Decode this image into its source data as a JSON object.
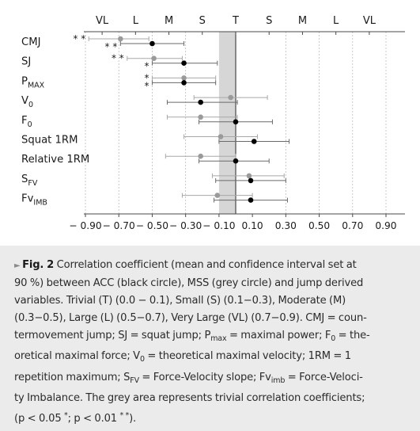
{
  "chart_data": {
    "type": "forest",
    "top_axis_labels": [
      "VL",
      "L",
      "M",
      "S",
      "T",
      "S",
      "M",
      "L",
      "VL"
    ],
    "x_ticks": [
      -0.9,
      -0.7,
      -0.5,
      -0.3,
      -0.1,
      0.1,
      0.3,
      0.5,
      0.7,
      0.9
    ],
    "x_tick_labels": [
      "− 0.90",
      "− 0.70",
      "− 0.50",
      "− 0.30",
      "− 0.10",
      "0.10",
      "0.30",
      "0.50",
      "0.70",
      "0.90"
    ],
    "xlim": [
      -1.0,
      1.0
    ],
    "trivial_band": [
      -0.1,
      0.0
    ],
    "grid": "dashed vertical",
    "colors": {
      "ACC": "#000000",
      "MSS": "#9a9a9a",
      "band": "#d6d6d6",
      "axis": "#4a4a4a"
    },
    "rows": [
      {
        "label": "CMJ",
        "sub": "",
        "sig": "* *",
        "sig2": "* *",
        "grey": {
          "mean": -0.69,
          "lo": -0.88,
          "hi": -0.52
        },
        "black": {
          "mean": -0.5,
          "lo": -0.69,
          "hi": -0.31
        }
      },
      {
        "label": "SJ",
        "sub": "",
        "sig": "* *",
        "sig2": "*",
        "grey": {
          "mean": -0.49,
          "lo": -0.65,
          "hi": -0.32
        },
        "black": {
          "mean": -0.31,
          "lo": -0.5,
          "hi": -0.11
        }
      },
      {
        "label": "P",
        "sub": "MAX",
        "sig": "*",
        "sig2": "*",
        "grey": {
          "mean": -0.31,
          "lo": -0.5,
          "hi": -0.12
        },
        "black": {
          "mean": -0.31,
          "lo": -0.5,
          "hi": -0.12
        }
      },
      {
        "label": "V",
        "sub": "0",
        "sig": "",
        "sig2": "",
        "grey": {
          "mean": -0.03,
          "lo": -0.25,
          "hi": 0.19
        },
        "black": {
          "mean": -0.21,
          "lo": -0.41,
          "hi": 0.01
        }
      },
      {
        "label": "F",
        "sub": "0",
        "sig": "",
        "sig2": "",
        "grey": {
          "mean": -0.21,
          "lo": -0.41,
          "hi": 0.01
        },
        "black": {
          "mean": 0.0,
          "lo": -0.22,
          "hi": 0.22
        }
      },
      {
        "label": "Squat 1RM",
        "sub": "",
        "sig": "",
        "sig2": "",
        "grey": {
          "mean": -0.09,
          "lo": -0.31,
          "hi": 0.13
        },
        "black": {
          "mean": 0.11,
          "lo": -0.1,
          "hi": 0.32
        }
      },
      {
        "label": "Relative 1RM",
        "sub": "",
        "sig": "",
        "sig2": "",
        "grey": {
          "mean": -0.21,
          "lo": -0.42,
          "hi": 0.0
        },
        "black": {
          "mean": 0.0,
          "lo": -0.22,
          "hi": 0.2
        }
      },
      {
        "label": "S",
        "sub": "FV",
        "sig": "",
        "sig2": "",
        "grey": {
          "mean": 0.08,
          "lo": -0.14,
          "hi": 0.29
        },
        "black": {
          "mean": 0.09,
          "lo": -0.12,
          "hi": 0.3
        }
      },
      {
        "label": "Fv",
        "sub": "IMB",
        "sig": "",
        "sig2": "",
        "grey": {
          "mean": -0.11,
          "lo": -0.32,
          "hi": 0.1
        },
        "black": {
          "mean": 0.09,
          "lo": -0.13,
          "hi": 0.31
        }
      }
    ]
  },
  "caption": {
    "lines": [
      [
        {
          "t": "► ",
          "c": "tri"
        },
        {
          "t": "Fig. 2",
          "c": "fig"
        },
        {
          "t": "  Correlation coefficient (mean and confidence interval set at"
        }
      ],
      [
        {
          "t": "90 %) between ACC (black circle), MSS (grey circle) and jump derived"
        }
      ],
      [
        {
          "t": "variables. Trivial (T) (0.0 − 0.1), Small (S) (0.1−0.3), Moderate (M)"
        }
      ],
      [
        {
          "t": "(0.3−0.5), Large (L) (0.5−0.7), Very Large (VL) (0.7−0.9). CMJ = coun-"
        }
      ],
      [
        {
          "t": "termovement jump; SJ = squat jump; P"
        },
        {
          "t": "max",
          "c": "sub"
        },
        {
          "t": " = maximal power; F"
        },
        {
          "t": "0",
          "c": "sub"
        },
        {
          "t": " = the-"
        }
      ],
      [
        {
          "t": "oretical maximal force; V"
        },
        {
          "t": "0",
          "c": "sub"
        },
        {
          "t": " = theoretical maximal velocity; 1RM = 1"
        }
      ],
      [
        {
          "t": "repetition maximum; S"
        },
        {
          "t": "FV",
          "c": "sub"
        },
        {
          "t": " = Force-Velocity slope; Fv"
        },
        {
          "t": "imb",
          "c": "sub"
        },
        {
          "t": " = Force-Veloci-"
        }
      ],
      [
        {
          "t": "ty Imbalance. The grey area represents trivial correlation coefficients;"
        }
      ],
      [
        {
          "t": "(p < 0.05 "
        },
        {
          "t": "*",
          "c": "sup"
        },
        {
          "t": "; p < 0.01 "
        },
        {
          "t": "* *",
          "c": "sup"
        },
        {
          "t": ")."
        }
      ]
    ]
  }
}
